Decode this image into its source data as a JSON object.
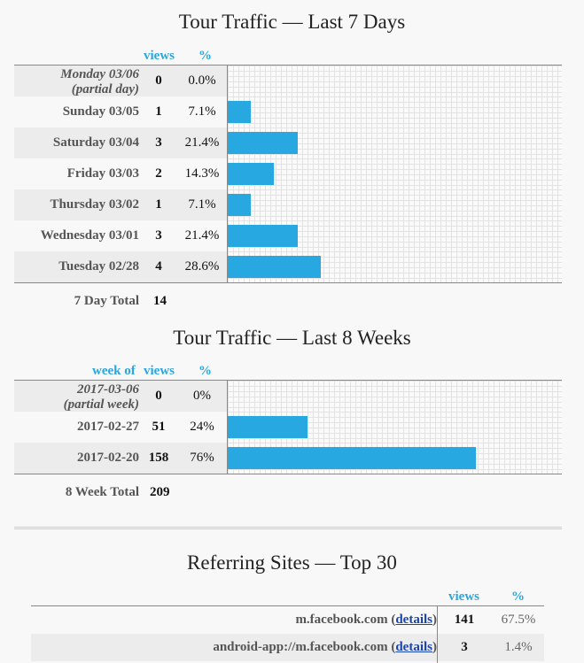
{
  "days": {
    "title": "Tour Traffic — Last 7 Days",
    "col_views": "views",
    "col_pct": "%",
    "rows": [
      {
        "label": [
          "Monday 03/06",
          "(partial day)"
        ],
        "views": "0",
        "pct": "0.0%",
        "value": 0
      },
      {
        "label": [
          "Sunday 03/05"
        ],
        "views": "1",
        "pct": "7.1%",
        "value": 1
      },
      {
        "label": [
          "Saturday 03/04"
        ],
        "views": "3",
        "pct": "21.4%",
        "value": 3
      },
      {
        "label": [
          "Friday 03/03"
        ],
        "views": "2",
        "pct": "14.3%",
        "value": 2
      },
      {
        "label": [
          "Thursday 03/02"
        ],
        "views": "1",
        "pct": "7.1%",
        "value": 1
      },
      {
        "label": [
          "Wednesday 03/01"
        ],
        "views": "3",
        "pct": "21.4%",
        "value": 3
      },
      {
        "label": [
          "Tuesday 02/28"
        ],
        "views": "4",
        "pct": "28.6%",
        "value": 4
      }
    ],
    "total_label": "7 Day Total",
    "total_value": "14",
    "bar_scale_max": 14.4
  },
  "weeks": {
    "title": "Tour Traffic — Last 8 Weeks",
    "col_weekof": "week of",
    "col_views": "views",
    "col_pct": "%",
    "rows": [
      {
        "label": [
          "2017-03-06",
          "(partial week)"
        ],
        "views": "0",
        "pct": "0%",
        "value": 0
      },
      {
        "label": [
          "2017-02-27"
        ],
        "views": "51",
        "pct": "24%",
        "value": 51
      },
      {
        "label": [
          "2017-02-20"
        ],
        "views": "158",
        "pct": "76%",
        "value": 158
      }
    ],
    "total_label": "8 Week Total",
    "total_value": "209",
    "bar_scale_max": 213
  },
  "referrers": {
    "title": "Referring Sites — Top 30",
    "col_views": "views",
    "col_pct": "%",
    "details_label": "details",
    "rows": [
      {
        "site": "m.facebook.com",
        "views": "141",
        "pct": "67.5%"
      },
      {
        "site": "android-app://m.facebook.com",
        "views": "3",
        "pct": "1.4%"
      }
    ]
  },
  "colors": {
    "bar": "#27a8e0",
    "header": "#2aa6e0",
    "link": "#1a44b0"
  }
}
